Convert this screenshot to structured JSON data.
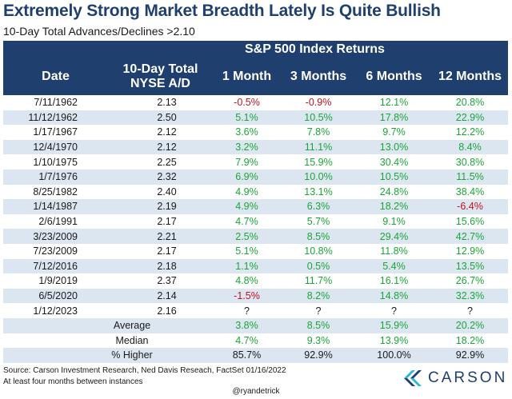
{
  "title": "Extremely Strong Market Breadth Lately Is Quite Bullish",
  "subtitle": "10-Day Total Advances/Declines >2.10",
  "header": {
    "group_label": "S&P 500 Index Returns",
    "date": "Date",
    "nyse_line1": "10-Day Total",
    "nyse_line2": "NYSE A/D",
    "m1": "1 Month",
    "m3": "3 Months",
    "m6": "6 Months",
    "m12": "12 Months"
  },
  "rows": [
    {
      "date": "7/11/1962",
      "ad": "2.13",
      "m1": "-0.5%",
      "m3": "-0.9%",
      "m6": "12.1%",
      "m12": "20.8%"
    },
    {
      "date": "11/12/1962",
      "ad": "2.50",
      "m1": "5.1%",
      "m3": "10.5%",
      "m6": "17.8%",
      "m12": "22.9%"
    },
    {
      "date": "1/17/1967",
      "ad": "2.12",
      "m1": "3.6%",
      "m3": "7.8%",
      "m6": "9.7%",
      "m12": "12.2%"
    },
    {
      "date": "12/4/1970",
      "ad": "2.12",
      "m1": "3.2%",
      "m3": "11.1%",
      "m6": "13.0%",
      "m12": "8.4%"
    },
    {
      "date": "1/10/1975",
      "ad": "2.25",
      "m1": "7.9%",
      "m3": "15.9%",
      "m6": "30.4%",
      "m12": "30.8%"
    },
    {
      "date": "1/7/1976",
      "ad": "2.32",
      "m1": "6.9%",
      "m3": "10.0%",
      "m6": "10.5%",
      "m12": "11.5%"
    },
    {
      "date": "8/25/1982",
      "ad": "2.40",
      "m1": "4.9%",
      "m3": "13.1%",
      "m6": "24.8%",
      "m12": "38.4%"
    },
    {
      "date": "1/14/1987",
      "ad": "2.19",
      "m1": "4.9%",
      "m3": "6.3%",
      "m6": "18.2%",
      "m12": "-6.4%"
    },
    {
      "date": "2/6/1991",
      "ad": "2.17",
      "m1": "4.7%",
      "m3": "5.7%",
      "m6": "9.1%",
      "m12": "15.6%"
    },
    {
      "date": "3/23/2009",
      "ad": "2.21",
      "m1": "2.5%",
      "m3": "8.5%",
      "m6": "29.4%",
      "m12": "42.7%"
    },
    {
      "date": "7/23/2009",
      "ad": "2.17",
      "m1": "5.1%",
      "m3": "10.8%",
      "m6": "11.8%",
      "m12": "12.9%"
    },
    {
      "date": "7/12/2016",
      "ad": "2.18",
      "m1": "1.1%",
      "m3": "0.5%",
      "m6": "5.4%",
      "m12": "13.5%"
    },
    {
      "date": "1/9/2019",
      "ad": "2.37",
      "m1": "4.8%",
      "m3": "11.7%",
      "m6": "16.1%",
      "m12": "26.7%"
    },
    {
      "date": "6/5/2020",
      "ad": "2.14",
      "m1": "-1.5%",
      "m3": "8.2%",
      "m6": "14.8%",
      "m12": "32.3%"
    },
    {
      "date": "1/12/2023",
      "ad": "2.16",
      "m1": "?",
      "m3": "?",
      "m6": "?",
      "m12": "?"
    }
  ],
  "summary": [
    {
      "label": "Average",
      "m1": "3.8%",
      "m3": "8.5%",
      "m6": "15.9%",
      "m12": "20.2%"
    },
    {
      "label": "Median",
      "m1": "4.7%",
      "m3": "9.3%",
      "m6": "13.9%",
      "m12": "18.2%"
    },
    {
      "label": "% Higher",
      "m1": "85.7%",
      "m3": "92.9%",
      "m6": "100.0%",
      "m12": "92.9%"
    }
  ],
  "footer": {
    "source": "Source: Carson Investment Research, Ned Davis Reseach, FactSet 01/16/2022",
    "note": "At least four months between instances",
    "handle": "@ryandetrick"
  },
  "logo": {
    "text": "CARSON"
  },
  "colors": {
    "header_bg": "#1f3f6e",
    "alt_row": "#dce6f1",
    "positive": "#1aa637",
    "negative": "#c0121f",
    "logo_blue": "#1f3f6e",
    "logo_cyan": "#2bb5d8"
  }
}
